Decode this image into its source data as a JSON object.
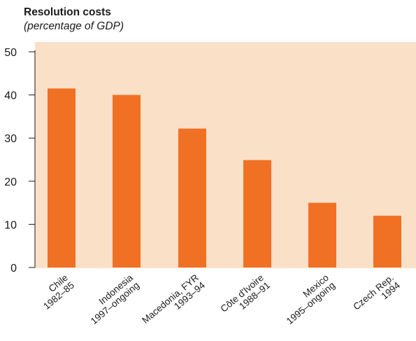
{
  "header": {
    "title": "Resolution costs",
    "subtitle": "(percentage of GDP)"
  },
  "colors": {
    "plot_background": "#fbe0c8",
    "bar": "#f07123",
    "axis": "#1a1a1a"
  },
  "chart_data": {
    "type": "bar",
    "title": "Resolution costs",
    "subtitle": "(percentage of GDP)",
    "categories": [
      [
        "Chile",
        "1982–85"
      ],
      [
        "Indonesia",
        "1997–ongoing"
      ],
      [
        "Macedonia, FYR",
        "1993–94"
      ],
      [
        "Côte d'Ivoire",
        "1988–91"
      ],
      [
        "Mexico",
        "1995–ongoing"
      ],
      [
        "Czech Rep.",
        "1994"
      ]
    ],
    "values": [
      41.5,
      40,
      32.2,
      24.9,
      15,
      12
    ],
    "ylim": [
      0,
      50
    ],
    "yticks": [
      0,
      10,
      20,
      30,
      40,
      50
    ],
    "grid": false
  }
}
